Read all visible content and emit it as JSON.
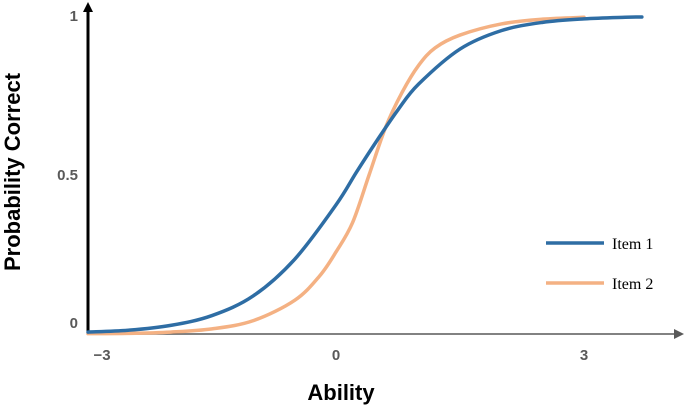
{
  "chart_data": {
    "type": "line",
    "title": "",
    "xlabel": "Ability",
    "ylabel": "Probability Correct",
    "xlim": [
      -3,
      4.2
    ],
    "ylim": [
      0,
      1.05
    ],
    "x_ticks": [
      {
        "value": -3,
        "label": "−3"
      },
      {
        "value": 0,
        "label": "0"
      },
      {
        "value": 3,
        "label": "3"
      }
    ],
    "y_ticks": [
      {
        "value": 0,
        "label": "0"
      },
      {
        "value": 0.5,
        "label": "0.5"
      },
      {
        "value": 1,
        "label": "1"
      }
    ],
    "grid": false,
    "legend_position": "bottom-right",
    "series": [
      {
        "name": "Item 1",
        "color": "#2e6da4",
        "x": [
          -3,
          -2.5,
          -2,
          -1.5,
          -1,
          -0.5,
          0,
          0.25,
          0.5,
          0.75,
          1,
          1.5,
          2,
          2.5,
          3,
          3.5,
          3.7
        ],
        "y": [
          0.006,
          0.012,
          0.027,
          0.058,
          0.12,
          0.235,
          0.406,
          0.51,
          0.61,
          0.705,
          0.786,
          0.896,
          0.954,
          0.98,
          0.991,
          0.996,
          0.997
        ]
      },
      {
        "name": "Item 2",
        "color": "#f4b183",
        "x": [
          -3,
          -2.5,
          -2,
          -1.5,
          -1,
          -0.5,
          -0.2,
          0,
          0.2,
          0.4,
          0.6,
          0.8,
          1,
          1.2,
          1.5,
          2,
          2.5,
          3
        ],
        "y": [
          0.001,
          0.002,
          0.006,
          0.016,
          0.042,
          0.106,
          0.182,
          0.258,
          0.35,
          0.5,
          0.65,
          0.76,
          0.845,
          0.9,
          0.94,
          0.975,
          0.99,
          0.996
        ]
      }
    ]
  }
}
